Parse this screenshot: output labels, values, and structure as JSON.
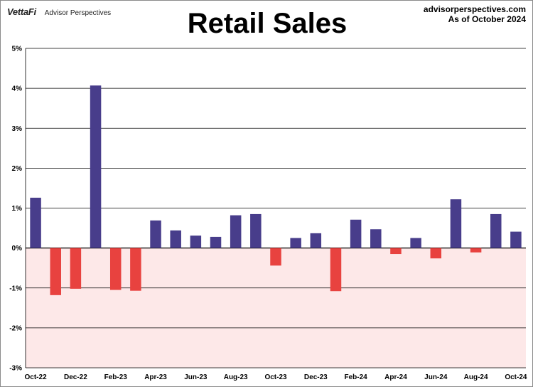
{
  "header": {
    "brand": "VettaFi",
    "brand_sub": "Advisor Perspectives",
    "title": "Retail Sales",
    "source_line1": "advisorperspectives.com",
    "source_line2": "As of October 2024"
  },
  "colors": {
    "positive": "#483D8B",
    "negative": "#E8423F",
    "negative_zone": "#FDE8E8",
    "grid": "#000000"
  },
  "chart_data": {
    "type": "bar",
    "title": "Retail Sales",
    "xlabel": "",
    "ylabel": "",
    "ylim": [
      -3,
      5
    ],
    "grid": true,
    "categories": [
      "Oct-22",
      "Nov-22",
      "Dec-22",
      "Jan-23",
      "Feb-23",
      "Mar-23",
      "Apr-23",
      "May-23",
      "Jun-23",
      "Jul-23",
      "Aug-23",
      "Sep-23",
      "Oct-23",
      "Nov-23",
      "Dec-23",
      "Jan-24",
      "Feb-24",
      "Mar-24",
      "Apr-24",
      "May-24",
      "Jun-24",
      "Jul-24",
      "Aug-24",
      "Sep-24",
      "Oct-24"
    ],
    "x_tick_labels": [
      "Oct-22",
      "Dec-22",
      "Feb-23",
      "Apr-23",
      "Jun-23",
      "Aug-23",
      "Oct-23",
      "Dec-23",
      "Feb-24",
      "Apr-24",
      "Jun-24",
      "Aug-24",
      "Oct-24"
    ],
    "y_ticks": [
      -3,
      -2,
      -1,
      0,
      1,
      2,
      3,
      4,
      5
    ],
    "y_tick_labels": [
      "-3%",
      "-2%",
      "-1%",
      "0%",
      "1%",
      "2%",
      "3%",
      "4%",
      "5%"
    ],
    "values": [
      1.26,
      -1.18,
      -1.02,
      4.07,
      -1.05,
      -1.07,
      0.69,
      0.44,
      0.31,
      0.28,
      0.82,
      0.85,
      -0.44,
      0.25,
      0.37,
      -1.08,
      0.71,
      0.47,
      -0.15,
      0.25,
      -0.26,
      1.22,
      -0.11,
      0.85,
      0.41
    ]
  }
}
